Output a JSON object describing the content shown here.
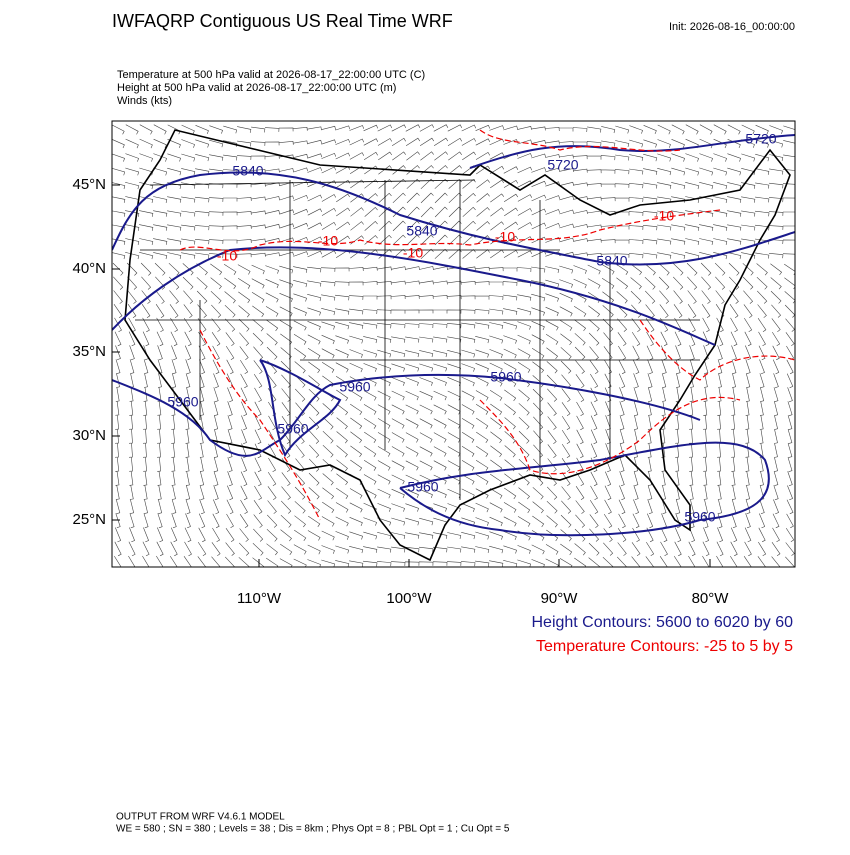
{
  "header": {
    "title": "IWFAQRP Contiguous US Real Time WRF",
    "init": "Init: 2026-08-16_00:00:00"
  },
  "fields": [
    "Temperature at 500 hPa valid at 2026-08-17_22:00:00 UTC   (C)",
    "Height at 500 hPa valid at 2026-08-17_22:00:00 UTC   (m)",
    "Winds   (kts)"
  ],
  "map": {
    "lat_labels": [
      "45°N",
      "40°N",
      "35°N",
      "30°N",
      "25°N"
    ],
    "lon_labels": [
      "110°W",
      "100°W",
      "90°W",
      "80°W"
    ],
    "height_labels": [
      "5720",
      "5720",
      "5840",
      "5840",
      "5840",
      "5960",
      "5960",
      "5960",
      "5960",
      "5960",
      "5960"
    ],
    "temp_labels": [
      "-10",
      "-10",
      "-10",
      "-10",
      "-10"
    ]
  },
  "legend": [
    "Height Contours: 5600 to 6020 by 60",
    "Temperature Contours: -25 to 5 by 5"
  ],
  "footer": [
    "OUTPUT FROM WRF V4.6.1 MODEL",
    "WE = 580 ; SN = 380 ; Levels = 38 ; Dis = 8km ; Phys Opt = 8 ; PBL Opt = 1 ; Cu Opt = 5"
  ]
}
